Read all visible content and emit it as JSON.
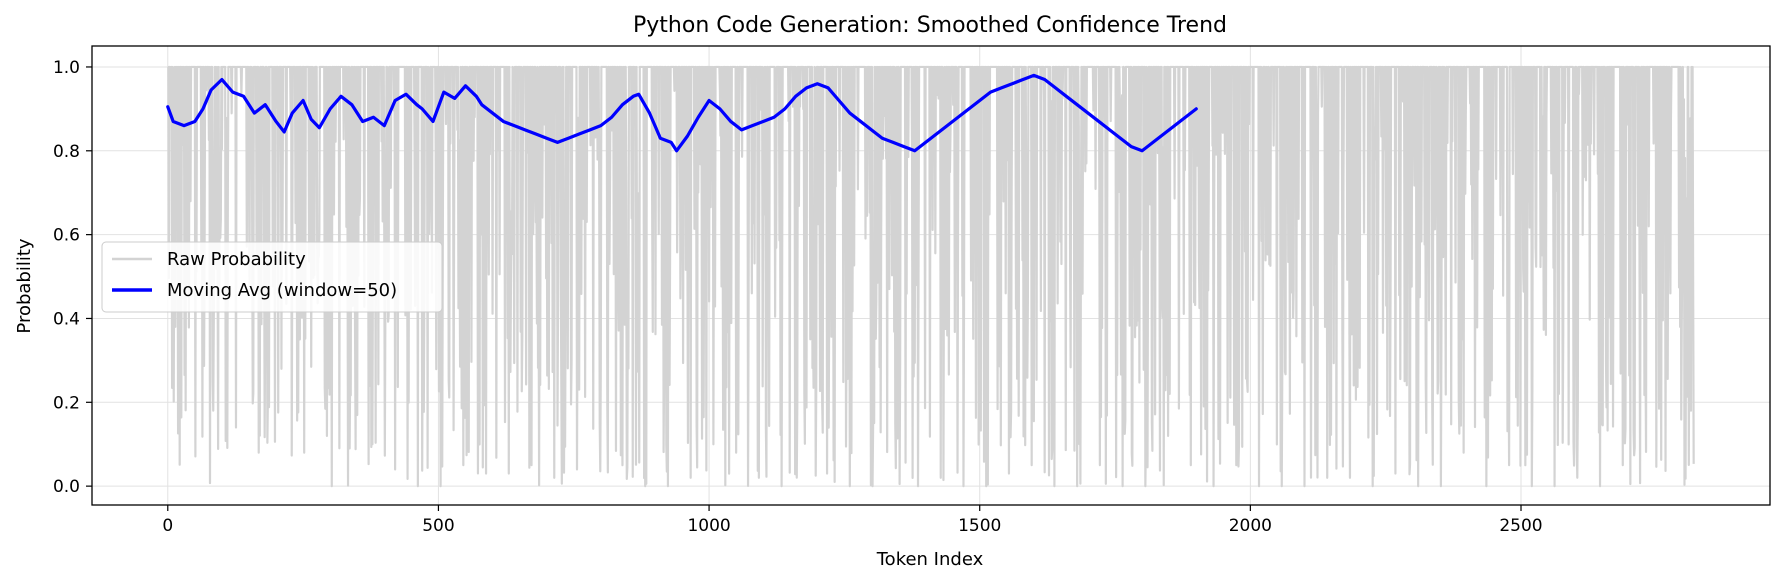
{
  "chart_data": {
    "type": "line",
    "title": "Python Code Generation: Smoothed Confidence Trend",
    "xlabel": "Token Index",
    "ylabel": "Probability",
    "xlim": [
      -140,
      2960
    ],
    "ylim": [
      -0.045,
      1.05
    ],
    "xticks": [
      0,
      500,
      1000,
      1500,
      2000,
      2500
    ],
    "xtick_labels": [
      "0",
      "500",
      "1000",
      "1500",
      "2000",
      "2500"
    ],
    "yticks": [
      0.0,
      0.2,
      0.4,
      0.6,
      0.8,
      1.0
    ],
    "ytick_labels": [
      "0.0",
      "0.2",
      "0.4",
      "0.6",
      "0.8",
      "1.0"
    ],
    "grid": true,
    "legend_position": "center-left",
    "series": [
      {
        "name": "Raw Probability",
        "color": "#d3d3d3",
        "style": "thin-line",
        "approx_points": 2820,
        "typical_high_value": 1.0,
        "dip_values": [
          0.31,
          0.68,
          0.18,
          0.14,
          0.08,
          0.28,
          0.08,
          0.12,
          0.09,
          0.1,
          0.04,
          0.0,
          0.0,
          0.05,
          0.03,
          0.03,
          0.05,
          0.02,
          0.04,
          0.15,
          0.05,
          0.0,
          0.0,
          0.02,
          0.1,
          0.08,
          0.02,
          0.0,
          0.22,
          0.03,
          0.0,
          0.0,
          0.15,
          0.0,
          0.02,
          0.0,
          0.0,
          0.03,
          0.05,
          0.0,
          0.0,
          0.05,
          0.0,
          0.0,
          0.12,
          0.05,
          0.0,
          0.05,
          0.0,
          0.0,
          0.0,
          0.02,
          0.02,
          0.0,
          0.03,
          0.0,
          0.0,
          0.08,
          0.0,
          0.05,
          0.0,
          0.0,
          0.02,
          0.0,
          0.05
        ]
      },
      {
        "name": "Moving Avg (window=50)",
        "color": "#0000ff",
        "style": "thick-line",
        "points": [
          [
            0,
            0.905
          ],
          [
            10,
            0.87
          ],
          [
            30,
            0.86
          ],
          [
            50,
            0.87
          ],
          [
            65,
            0.9
          ],
          [
            80,
            0.945
          ],
          [
            100,
            0.97
          ],
          [
            120,
            0.94
          ],
          [
            140,
            0.93
          ],
          [
            160,
            0.89
          ],
          [
            180,
            0.91
          ],
          [
            200,
            0.87
          ],
          [
            215,
            0.845
          ],
          [
            230,
            0.89
          ],
          [
            250,
            0.92
          ],
          [
            265,
            0.875
          ],
          [
            280,
            0.855
          ],
          [
            300,
            0.9
          ],
          [
            320,
            0.93
          ],
          [
            340,
            0.91
          ],
          [
            360,
            0.87
          ],
          [
            380,
            0.88
          ],
          [
            400,
            0.86
          ],
          [
            420,
            0.92
          ],
          [
            440,
            0.935
          ],
          [
            460,
            0.91
          ],
          [
            470,
            0.9
          ],
          [
            490,
            0.87
          ],
          [
            510,
            0.94
          ],
          [
            530,
            0.925
          ],
          [
            550,
            0.955
          ],
          [
            570,
            0.93
          ],
          [
            580,
            0.91
          ],
          [
            600,
            0.89
          ],
          [
            620,
            0.87
          ],
          [
            640,
            0.86
          ],
          [
            660,
            0.85
          ],
          [
            680,
            0.84
          ],
          [
            700,
            0.83
          ],
          [
            720,
            0.82
          ],
          [
            740,
            0.83
          ],
          [
            760,
            0.84
          ],
          [
            780,
            0.85
          ],
          [
            800,
            0.86
          ],
          [
            820,
            0.88
          ],
          [
            840,
            0.91
          ],
          [
            860,
            0.93
          ],
          [
            870,
            0.935
          ],
          [
            890,
            0.89
          ],
          [
            910,
            0.83
          ],
          [
            930,
            0.82
          ],
          [
            940,
            0.8
          ],
          [
            960,
            0.835
          ],
          [
            980,
            0.88
          ],
          [
            1000,
            0.92
          ],
          [
            1020,
            0.9
          ],
          [
            1040,
            0.87
          ],
          [
            1060,
            0.85
          ],
          [
            1080,
            0.86
          ],
          [
            1100,
            0.87
          ],
          [
            1120,
            0.88
          ],
          [
            1140,
            0.9
          ],
          [
            1160,
            0.93
          ],
          [
            1180,
            0.95
          ],
          [
            1200,
            0.96
          ],
          [
            1220,
            0.95
          ],
          [
            1240,
            0.92
          ],
          [
            1260,
            0.89
          ],
          [
            1280,
            0.87
          ],
          [
            1300,
            0.85
          ],
          [
            1320,
            0.83
          ],
          [
            1340,
            0.82
          ],
          [
            1360,
            0.81
          ],
          [
            1380,
            0.8
          ],
          [
            1400,
            0.82
          ],
          [
            1420,
            0.84
          ],
          [
            1440,
            0.86
          ],
          [
            1460,
            0.88
          ],
          [
            1480,
            0.9
          ],
          [
            1500,
            0.92
          ],
          [
            1520,
            0.94
          ],
          [
            1540,
            0.95
          ],
          [
            1560,
            0.96
          ],
          [
            1580,
            0.97
          ],
          [
            1600,
            0.98
          ],
          [
            1620,
            0.97
          ],
          [
            1640,
            0.95
          ],
          [
            1660,
            0.93
          ],
          [
            1680,
            0.91
          ],
          [
            1700,
            0.89
          ],
          [
            1720,
            0.87
          ],
          [
            1740,
            0.85
          ],
          [
            1760,
            0.83
          ],
          [
            1780,
            0.81
          ],
          [
            1800,
            0.8
          ],
          [
            1820,
            0.82
          ],
          [
            1840,
            0.84
          ],
          [
            1860,
            0.86
          ],
          [
            1880,
            0.88
          ],
          [
            1900,
            0.9
          ]
        ]
      }
    ]
  }
}
